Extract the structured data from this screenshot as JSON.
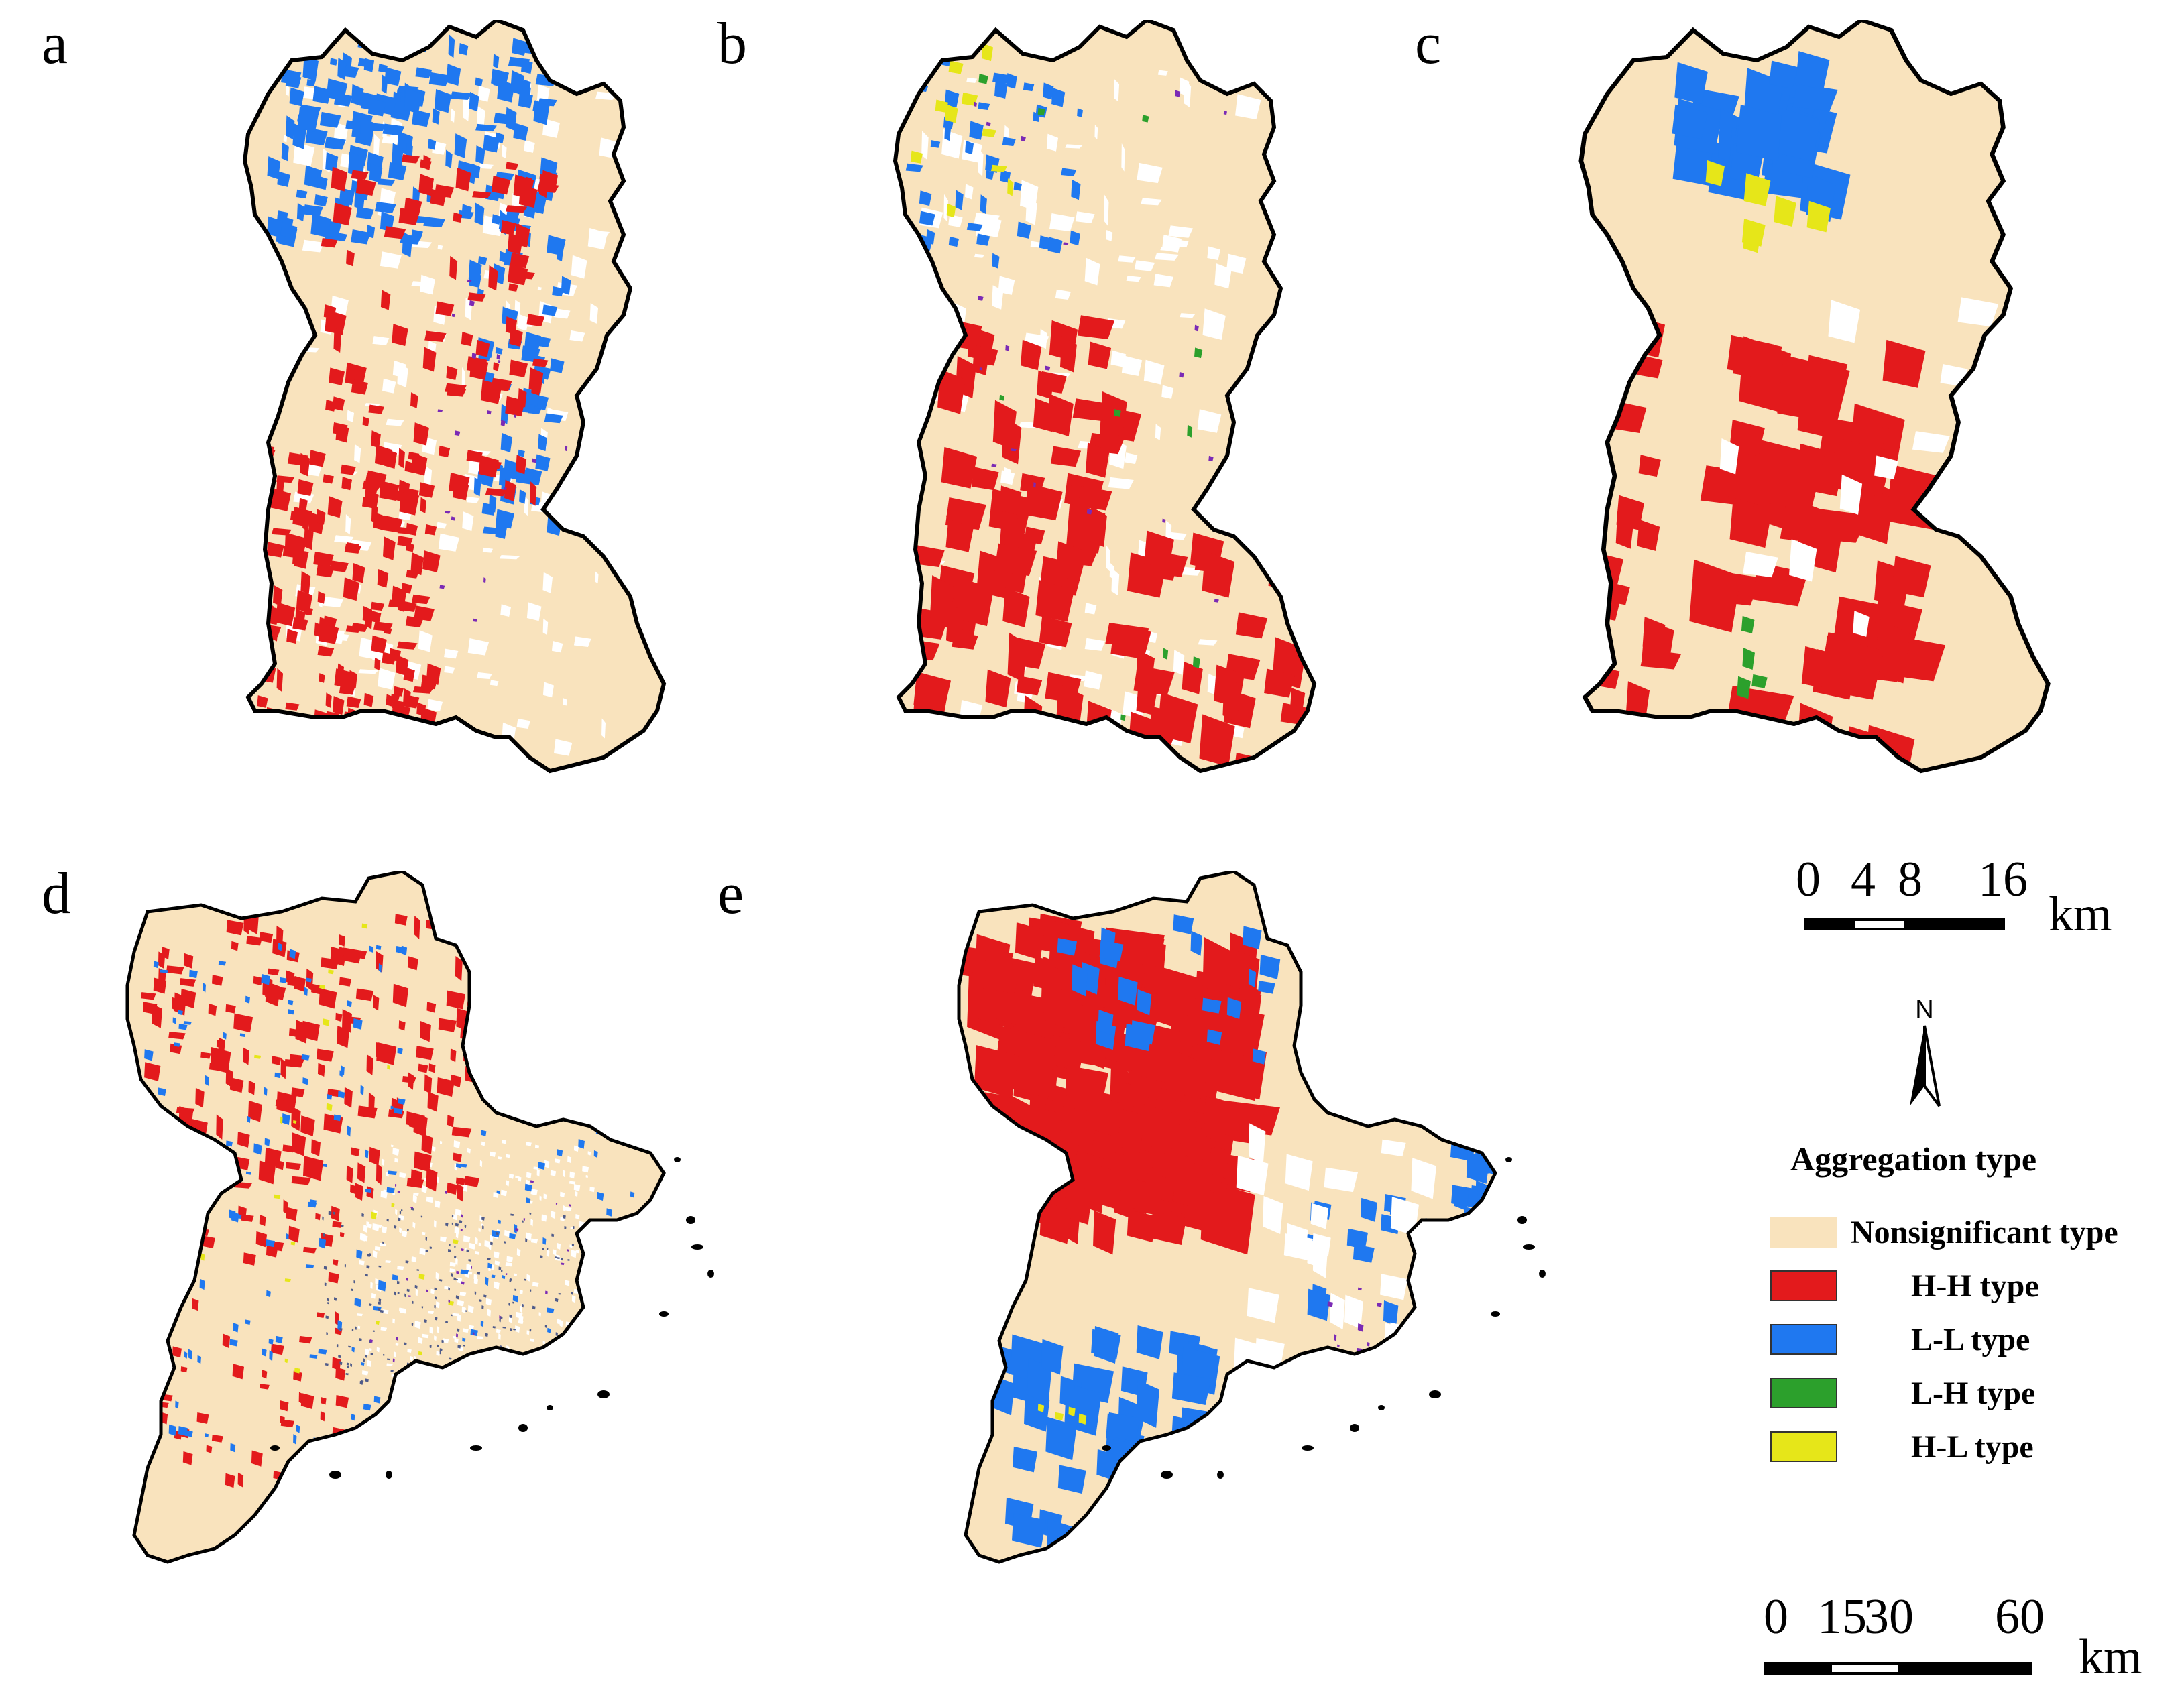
{
  "panels": [
    "a",
    "b",
    "c",
    "d",
    "e"
  ],
  "scale_top": {
    "ticks": [
      "0",
      "4",
      "8",
      "16"
    ],
    "unit": "km"
  },
  "scale_bottom": {
    "ticks": [
      "0",
      "15",
      "30",
      "60"
    ],
    "unit": "km"
  },
  "north": "N",
  "legend": {
    "title": "Aggregation type",
    "items": [
      {
        "label": "Nonsignificant type",
        "color": "#f9e3bd"
      },
      {
        "label": "H-H type",
        "color": "#e31a1c"
      },
      {
        "label": "L-L type",
        "color": "#1f78f0"
      },
      {
        "label": "L-H type",
        "color": "#2ca02c"
      },
      {
        "label": "H-L type",
        "color": "#e6e619"
      }
    ]
  },
  "colors": {
    "base": "#f9e3bd",
    "hh": "#e31a1c",
    "ll": "#1f78f0",
    "lh": "#2ca02c",
    "hl": "#e6e619",
    "purple": "#7b2ab5",
    "border": "#000000"
  }
}
